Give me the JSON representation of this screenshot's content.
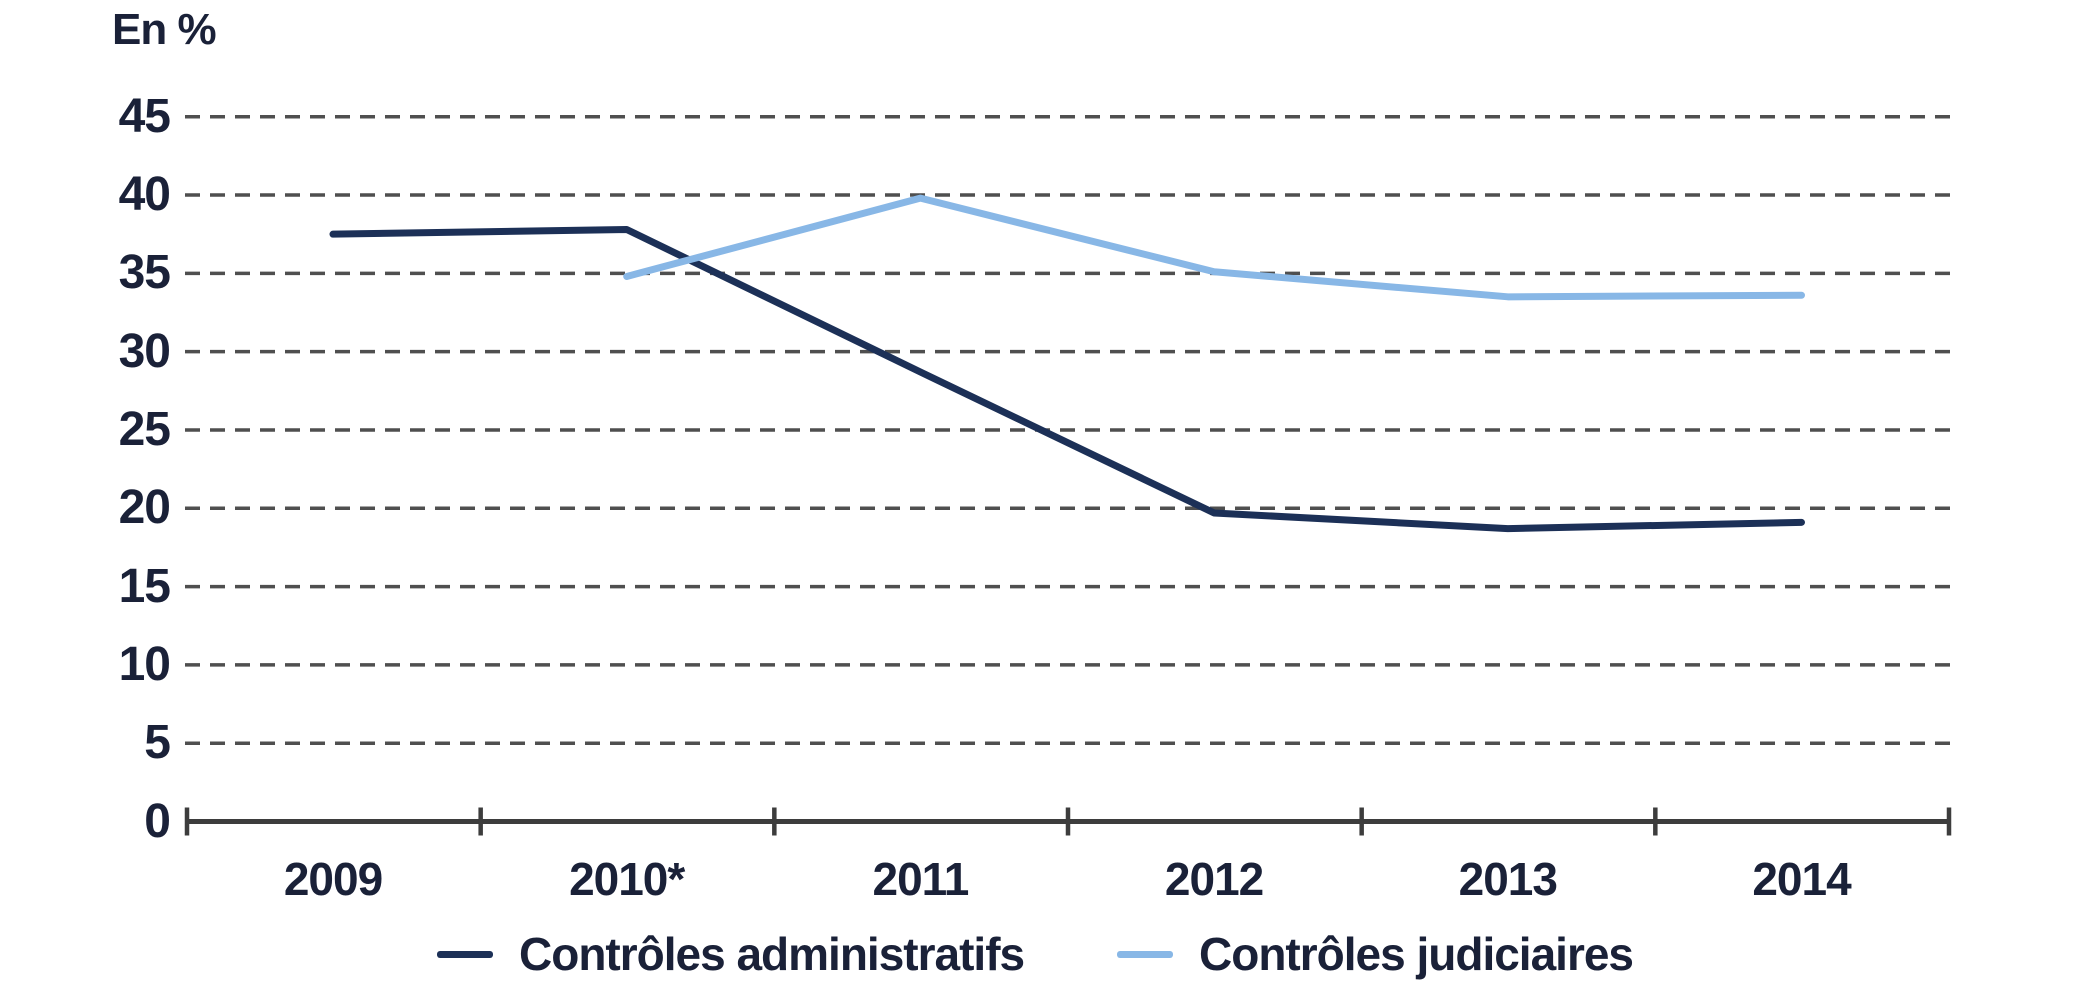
{
  "chart_data": {
    "type": "line",
    "title": "",
    "y_axis_unit": "En %",
    "x_categories": [
      "2009",
      "2010*",
      "2011",
      "2012",
      "2013",
      "2014"
    ],
    "y_ticks": [
      0,
      5,
      10,
      15,
      20,
      25,
      30,
      35,
      40,
      45
    ],
    "ylim": [
      0,
      45
    ],
    "grid": "horizontal-dashed",
    "legend_position": "bottom",
    "series": [
      {
        "name": "Contrôles administratifs",
        "color": "#1c3057",
        "values": [
          37.5,
          37.8,
          28.7,
          19.7,
          18.7,
          19.1
        ]
      },
      {
        "name": "Contrôles judiciaires",
        "color": "#88b7e6",
        "values": [
          null,
          34.8,
          39.8,
          35.1,
          33.5,
          33.6
        ]
      }
    ]
  },
  "colors": {
    "text": "#1a2138",
    "grid": "#4f4f4f",
    "axis": "#3d3d3d",
    "background": "#ffffff"
  }
}
